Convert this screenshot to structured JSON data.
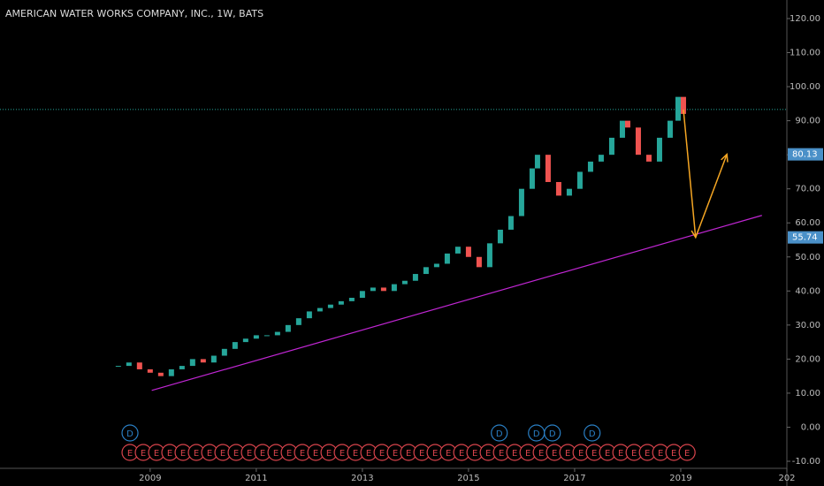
{
  "chart_data": {
    "type": "candlestick",
    "title": "AMERICAN WATER WORKS COMPANY, INC., 1W, BATS",
    "x": [
      2008.4,
      2008.6,
      2008.8,
      2009.0,
      2009.2,
      2009.4,
      2009.6,
      2009.8,
      2010.0,
      2010.2,
      2010.4,
      2010.6,
      2010.8,
      2011.0,
      2011.2,
      2011.4,
      2011.6,
      2011.8,
      2012.0,
      2012.2,
      2012.4,
      2012.6,
      2012.8,
      2013.0,
      2013.2,
      2013.4,
      2013.6,
      2013.8,
      2014.0,
      2014.2,
      2014.4,
      2014.6,
      2014.8,
      2015.0,
      2015.2,
      2015.4,
      2015.6,
      2015.8,
      2016.0,
      2016.2,
      2016.3,
      2016.5,
      2016.7,
      2016.9,
      2017.1,
      2017.3,
      2017.5,
      2017.7,
      2017.9,
      2018.0,
      2018.2,
      2018.4,
      2018.6,
      2018.8,
      2018.95,
      2019.05
    ],
    "closes": [
      18,
      19,
      17,
      16,
      15,
      17,
      18,
      20,
      19,
      21,
      23,
      25,
      26,
      27,
      27,
      28,
      30,
      32,
      34,
      35,
      36,
      37,
      38,
      40,
      41,
      40,
      42,
      43,
      45,
      47,
      48,
      51,
      53,
      50,
      47,
      54,
      58,
      62,
      70,
      76,
      80,
      72,
      68,
      70,
      75,
      78,
      80,
      85,
      90,
      88,
      80,
      78,
      85,
      90,
      97,
      92
    ],
    "up_color": "#26a69a",
    "down_color": "#ef5350",
    "xlim": [
      2006.17,
      2021
    ],
    "ylim": [
      -10,
      120
    ],
    "xticks": [
      2009,
      2011,
      2013,
      2015,
      2017,
      2019,
      {
        "value": 2021,
        "label": "202"
      }
    ],
    "yticks": [
      {
        "value": 120,
        "label": "120.00"
      },
      {
        "value": 110,
        "label": "110.00"
      },
      {
        "value": 100,
        "label": "100.00"
      },
      {
        "value": 90,
        "label": "90.00"
      },
      {
        "value": 80,
        "label": "80.00"
      },
      {
        "value": 70,
        "label": "70.00"
      },
      {
        "value": 60,
        "label": "60.00"
      },
      {
        "value": 50,
        "label": "50.00"
      },
      {
        "value": 40,
        "label": "40.00"
      },
      {
        "value": 30,
        "label": "30.00"
      },
      {
        "value": 20,
        "label": "20.00"
      },
      {
        "value": 10,
        "label": "10.00"
      },
      {
        "value": 0,
        "label": "0.00"
      },
      {
        "value": -10,
        "label": "-10.00"
      }
    ],
    "horizontal_line": {
      "value": 93.3,
      "color": "#26a69a"
    },
    "trendline": {
      "x": [
        2009.03,
        2020.53
      ],
      "values": [
        10.8,
        62.2
      ],
      "color": "#c026d3"
    },
    "projection": {
      "x": [
        2019.05,
        2019.28,
        2019.87
      ],
      "values": [
        93.3,
        55.74,
        80.13
      ],
      "color": "#f5a623"
    },
    "price_labels": [
      80.13,
      55.74
    ],
    "price_label_color": "#4a90c8",
    "events": [
      {
        "label": "D",
        "color": "#2a7fc4",
        "x": [
          2008.62,
          2015.58,
          2016.28,
          2016.58,
          2017.33
        ]
      },
      {
        "label": "E",
        "color": "#d9444c",
        "x": [
          2008.62,
          2008.87,
          2009.12,
          2009.37,
          2009.62,
          2009.87,
          2010.12,
          2010.37,
          2010.62,
          2010.87,
          2011.12,
          2011.37,
          2011.62,
          2011.87,
          2012.12,
          2012.37,
          2012.62,
          2012.87,
          2013.12,
          2013.37,
          2013.62,
          2013.87,
          2014.12,
          2014.37,
          2014.62,
          2014.87,
          2015.12,
          2015.37,
          2015.62,
          2015.87,
          2016.12,
          2016.37,
          2016.62,
          2016.87,
          2017.12,
          2017.37,
          2017.62,
          2017.87,
          2018.12,
          2018.37,
          2018.62,
          2018.87,
          2019.12
        ]
      }
    ]
  }
}
